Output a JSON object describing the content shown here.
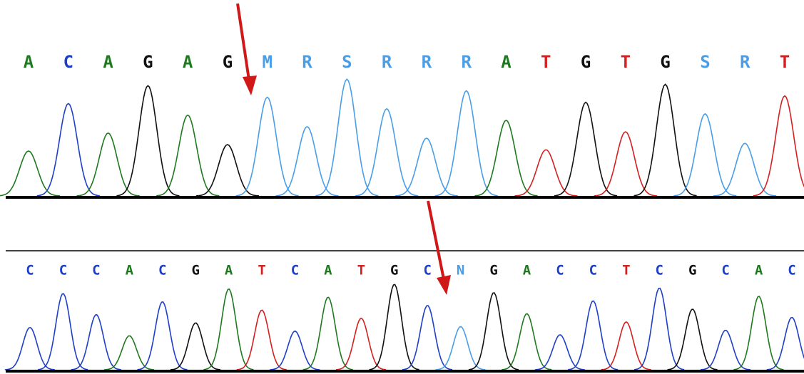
{
  "panels": [
    {
      "bases": [
        {
          "letter": "A",
          "color": "#1f7a1f"
        },
        {
          "letter": "C",
          "color": "#1e3fc8"
        },
        {
          "letter": "A",
          "color": "#1f7a1f"
        },
        {
          "letter": "G",
          "color": "#111111"
        },
        {
          "letter": "A",
          "color": "#1f7a1f"
        },
        {
          "letter": "G",
          "color": "#111111"
        },
        {
          "letter": "M",
          "color": "#4a9ee8"
        },
        {
          "letter": "R",
          "color": "#4a9ee8"
        },
        {
          "letter": "S",
          "color": "#4a9ee8"
        },
        {
          "letter": "R",
          "color": "#4a9ee8"
        },
        {
          "letter": "R",
          "color": "#4a9ee8"
        },
        {
          "letter": "R",
          "color": "#4a9ee8"
        },
        {
          "letter": "A",
          "color": "#1f7a1f"
        },
        {
          "letter": "T",
          "color": "#d42020"
        },
        {
          "letter": "G",
          "color": "#111111"
        },
        {
          "letter": "T",
          "color": "#d42020"
        },
        {
          "letter": "G",
          "color": "#111111"
        },
        {
          "letter": "S",
          "color": "#4a9ee8"
        },
        {
          "letter": "R",
          "color": "#4a9ee8"
        },
        {
          "letter": "T",
          "color": "#d42020"
        }
      ]
    },
    {
      "bases": [
        {
          "letter": "C",
          "color": "#1e3fc8"
        },
        {
          "letter": "C",
          "color": "#1e3fc8"
        },
        {
          "letter": "C",
          "color": "#1e3fc8"
        },
        {
          "letter": "A",
          "color": "#1f7a1f"
        },
        {
          "letter": "C",
          "color": "#1e3fc8"
        },
        {
          "letter": "G",
          "color": "#111111"
        },
        {
          "letter": "A",
          "color": "#1f7a1f"
        },
        {
          "letter": "T",
          "color": "#d42020"
        },
        {
          "letter": "C",
          "color": "#1e3fc8"
        },
        {
          "letter": "A",
          "color": "#1f7a1f"
        },
        {
          "letter": "T",
          "color": "#d42020"
        },
        {
          "letter": "G",
          "color": "#111111"
        },
        {
          "letter": "C",
          "color": "#1e3fc8"
        },
        {
          "letter": "N",
          "color": "#4a9ee8"
        },
        {
          "letter": "G",
          "color": "#111111"
        },
        {
          "letter": "A",
          "color": "#1f7a1f"
        },
        {
          "letter": "C",
          "color": "#1e3fc8"
        },
        {
          "letter": "C",
          "color": "#1e3fc8"
        },
        {
          "letter": "T",
          "color": "#d42020"
        },
        {
          "letter": "C",
          "color": "#1e3fc8"
        },
        {
          "letter": "G",
          "color": "#111111"
        },
        {
          "letter": "C",
          "color": "#1e3fc8"
        },
        {
          "letter": "A",
          "color": "#1f7a1f"
        },
        {
          "letter": "C",
          "color": "#1e3fc8"
        }
      ]
    }
  ]
}
